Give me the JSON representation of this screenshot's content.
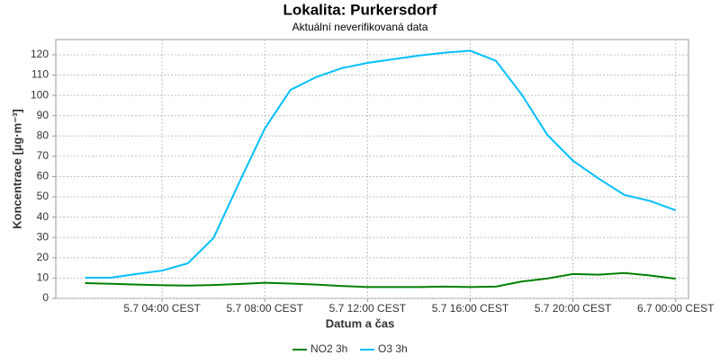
{
  "chart_data": {
    "type": "line",
    "title": "Lokalita: Purkersdorf",
    "subtitle": "Aktuální neverifikovaná data",
    "x_label": "Datum a čas",
    "y_label": "Koncentrace [µg·m⁻³]",
    "x": [
      1,
      2,
      3,
      4,
      5,
      6,
      7,
      8,
      9,
      10,
      11,
      12,
      13,
      14,
      15,
      16,
      17,
      18,
      19,
      20,
      21,
      22,
      23,
      24
    ],
    "xlim": [
      -0.14,
      24.5
    ],
    "xticks": [
      {
        "value": 4,
        "label": "5.7 04:00 CEST"
      },
      {
        "value": 8,
        "label": "5.7 08:00 CEST"
      },
      {
        "value": 12,
        "label": "5.7 12:00 CEST"
      },
      {
        "value": 16,
        "label": "5.7 16:00 CEST"
      },
      {
        "value": 20,
        "label": "5.7 20:00 CEST"
      },
      {
        "value": 24,
        "label": "6.7 00:00 CEST"
      }
    ],
    "ylim": [
      0,
      127.5
    ],
    "yticks": [
      0,
      10,
      20,
      30,
      40,
      50,
      60,
      70,
      80,
      90,
      100,
      110,
      120
    ],
    "grid": true,
    "legend": "bottom",
    "series": [
      {
        "name": "NO2 3h",
        "color": "#008000",
        "values": [
          7.5,
          7.2,
          6.8,
          6.5,
          6.3,
          6.6,
          7.1,
          7.7,
          7.3,
          6.8,
          6.1,
          5.6,
          5.6,
          5.6,
          5.8,
          5.6,
          5.8,
          8.3,
          9.8,
          12,
          11.7,
          12.5,
          11.3,
          9.7
        ]
      },
      {
        "name": "O3 3h",
        "color": "#00bfff",
        "values": [
          10.2,
          10.2,
          12,
          13.7,
          17.3,
          29.7,
          57,
          83.7,
          102.7,
          109,
          113.4,
          116,
          117.8,
          119.6,
          121,
          122,
          117,
          100.5,
          80.6,
          67.8,
          59,
          51,
          48,
          43.4
        ]
      }
    ]
  }
}
